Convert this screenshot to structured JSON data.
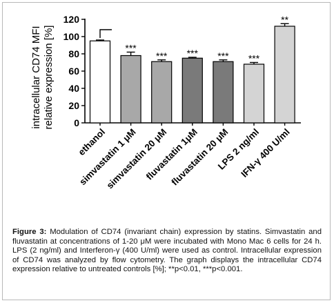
{
  "chart_data": {
    "type": "bar",
    "ylabel_line1": "intracellular CD74 MFI",
    "ylabel_line2": "relative expression [%]",
    "ylim": [
      0,
      120
    ],
    "yticks": [
      0,
      20,
      40,
      60,
      80,
      100,
      120
    ],
    "categories": [
      "ethanol",
      "simvastatin 1 μM",
      "simvastatin 20 μM",
      "fluvastatin 1μM",
      "fluvastatin 20 μM",
      "LPS 2 ng/ml",
      "IFN-γ 400 U/ml"
    ],
    "values": [
      95,
      78,
      71,
      75,
      71,
      68,
      112
    ],
    "errors": [
      1,
      4,
      2,
      1,
      2,
      2,
      3
    ],
    "colors": [
      "#ffffff",
      "#a8a8a8",
      "#a8a8a8",
      "#7a7a7a",
      "#7a7a7a",
      "#d4d4d4",
      "#d4d4d4"
    ],
    "significance": [
      "",
      "***",
      "***",
      "***",
      "***",
      "***",
      "**"
    ],
    "grid": false
  },
  "caption": {
    "label": "Figure 3:",
    "text": " Modulation of CD74 (invariant chain) expression by statins. Simvastatin and fluvastatin at concentrations of 1-20 μM were incubated with Mono Mac 6 cells for 24 h. LPS (2 ng/ml) and Interferon-γ (400 U/ml) were used as control. Intracellular expression of CD74 was analyzed by flow cytometry. The graph displays the intracellular CD74 expression relative to untreated controls [%]; **p<0.01, ***p<0.001."
  }
}
